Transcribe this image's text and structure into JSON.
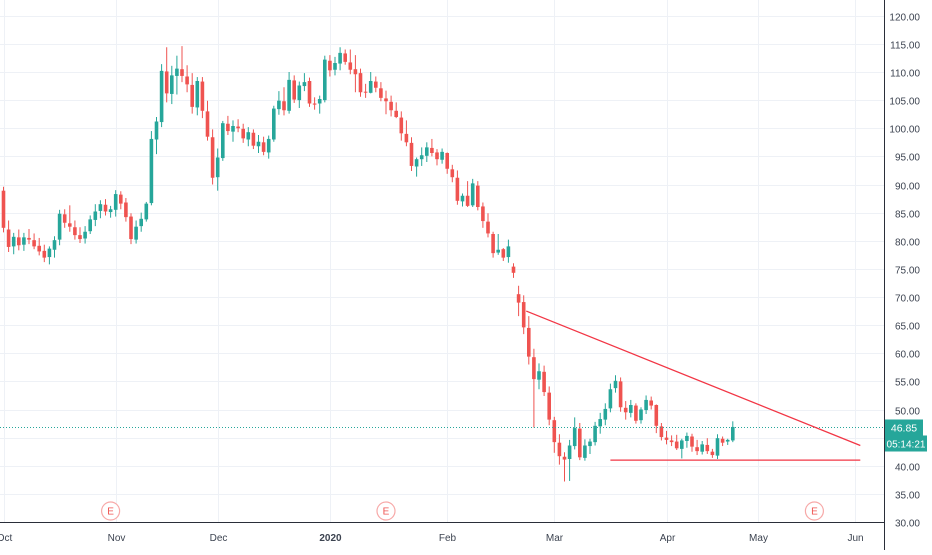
{
  "chart_data": {
    "type": "candlestick",
    "title": "",
    "ylabel": "",
    "xlabel": "",
    "ylim": [
      30,
      122.8
    ],
    "y_ticks": [
      "120.00",
      "115.00",
      "110.00",
      "105.00",
      "100.00",
      "95.00",
      "90.00",
      "85.00",
      "80.00",
      "75.00",
      "70.00",
      "65.00",
      "60.00",
      "55.00",
      "50.00",
      "45.00",
      "40.00",
      "35.00",
      "30.00"
    ],
    "x_ticks": [
      {
        "label": "Oct",
        "x": 0
      },
      {
        "label": "Nov",
        "x": 22
      },
      {
        "label": "Dec",
        "x": 42
      },
      {
        "label": "2020",
        "x": 64
      },
      {
        "label": "Feb",
        "x": 87
      },
      {
        "label": "Mar",
        "x": 108
      },
      {
        "label": "Apr",
        "x": 130
      },
      {
        "label": "May",
        "x": 148
      },
      {
        "label": "Jun",
        "x": 167
      }
    ],
    "up_color": "#26a69a",
    "down_color": "#ef5350",
    "candles": [
      [
        88.9,
        89.6,
        81.5,
        82.3
      ],
      [
        82.0,
        83.6,
        78.0,
        78.9
      ],
      [
        79.0,
        81.4,
        77.6,
        80.7
      ],
      [
        80.6,
        82.0,
        78.3,
        79.2
      ],
      [
        79.3,
        81.4,
        78.2,
        80.6
      ],
      [
        80.5,
        82.1,
        79.4,
        80.2
      ],
      [
        80.1,
        81.3,
        78.5,
        79.0
      ],
      [
        79.1,
        80.5,
        77.4,
        78.1
      ],
      [
        78.2,
        79.3,
        76.2,
        77.0
      ],
      [
        77.1,
        79.0,
        75.8,
        78.6
      ],
      [
        78.4,
        80.8,
        77.0,
        80.1
      ],
      [
        80.2,
        85.5,
        79.2,
        84.8
      ],
      [
        84.7,
        85.6,
        82.3,
        83.2
      ],
      [
        83.1,
        86.3,
        81.6,
        82.5
      ],
      [
        82.4,
        83.6,
        80.2,
        81.0
      ],
      [
        81.0,
        82.4,
        79.6,
        80.3
      ],
      [
        80.4,
        82.6,
        79.5,
        81.6
      ],
      [
        81.7,
        84.5,
        81.2,
        83.8
      ],
      [
        83.7,
        86.5,
        82.6,
        85.2
      ],
      [
        85.3,
        87.2,
        84.0,
        86.5
      ],
      [
        86.4,
        87.4,
        84.5,
        85.2
      ],
      [
        85.1,
        86.2,
        84.1,
        85.6
      ],
      [
        85.5,
        89.0,
        84.3,
        88.3
      ],
      [
        88.2,
        88.8,
        85.6,
        86.6
      ],
      [
        86.8,
        87.6,
        83.4,
        84.2
      ],
      [
        84.3,
        84.9,
        79.4,
        80.3
      ],
      [
        80.2,
        83.6,
        79.5,
        82.5
      ],
      [
        82.6,
        85.0,
        81.6,
        83.9
      ],
      [
        83.8,
        86.9,
        83.4,
        86.6
      ],
      [
        86.7,
        99.5,
        86.3,
        98.1
      ],
      [
        98.0,
        102.0,
        95.4,
        101.2
      ],
      [
        101.1,
        111.4,
        100.2,
        110.2
      ],
      [
        110.1,
        114.4,
        104.6,
        106.2
      ],
      [
        106.1,
        111.1,
        104.3,
        109.4
      ],
      [
        109.3,
        112.9,
        106.0,
        110.6
      ],
      [
        110.5,
        114.6,
        108.2,
        109.3
      ],
      [
        109.2,
        111.2,
        106.4,
        107.8
      ],
      [
        107.7,
        109.8,
        102.6,
        103.8
      ],
      [
        103.7,
        109.1,
        102.3,
        108.4
      ],
      [
        108.3,
        109.1,
        101.8,
        103.1
      ],
      [
        103.0,
        104.9,
        97.8,
        98.5
      ],
      [
        98.4,
        99.8,
        90.0,
        91.2
      ],
      [
        91.3,
        96.4,
        88.9,
        94.8
      ],
      [
        94.7,
        101.3,
        94.2,
        100.9
      ],
      [
        100.8,
        102.2,
        98.8,
        99.5
      ],
      [
        99.4,
        101.4,
        97.6,
        100.4
      ],
      [
        100.3,
        101.6,
        99.3,
        100.0
      ],
      [
        99.9,
        100.8,
        97.4,
        98.2
      ],
      [
        98.0,
        100.2,
        96.8,
        99.3
      ],
      [
        99.2,
        99.8,
        96.3,
        96.9
      ],
      [
        96.8,
        98.8,
        95.6,
        97.6
      ],
      [
        97.5,
        98.5,
        95.2,
        95.8
      ],
      [
        95.7,
        98.7,
        94.6,
        98.1
      ],
      [
        98.0,
        104.0,
        97.6,
        103.5
      ],
      [
        103.4,
        106.6,
        102.4,
        104.9
      ],
      [
        104.8,
        107.3,
        102.3,
        103.2
      ],
      [
        103.1,
        110.0,
        102.6,
        108.6
      ],
      [
        108.5,
        109.4,
        104.5,
        105.1
      ],
      [
        105.0,
        108.3,
        103.6,
        107.6
      ],
      [
        107.5,
        109.8,
        106.6,
        108.2
      ],
      [
        108.4,
        109.0,
        103.8,
        104.4
      ],
      [
        104.4,
        105.5,
        103.3,
        104.2
      ],
      [
        104.4,
        105.8,
        102.6,
        105.2
      ],
      [
        105.0,
        112.9,
        104.6,
        112.2
      ],
      [
        112.0,
        113.0,
        109.2,
        110.3
      ],
      [
        110.4,
        112.7,
        109.4,
        111.6
      ],
      [
        111.5,
        114.4,
        110.3,
        113.4
      ],
      [
        113.3,
        114.0,
        111.3,
        111.8
      ],
      [
        111.7,
        114.0,
        109.6,
        110.4
      ],
      [
        110.5,
        113.0,
        106.4,
        109.6
      ],
      [
        109.8,
        110.6,
        105.6,
        106.4
      ],
      [
        106.5,
        107.9,
        105.4,
        106.4
      ],
      [
        106.3,
        110.0,
        106.2,
        108.4
      ],
      [
        108.3,
        109.2,
        106.4,
        107.2
      ],
      [
        107.1,
        108.2,
        104.8,
        105.4
      ],
      [
        105.3,
        106.7,
        102.5,
        104.8
      ],
      [
        104.7,
        105.8,
        102.1,
        103.2
      ],
      [
        103.1,
        104.6,
        101.8,
        102.0
      ],
      [
        101.9,
        103.0,
        97.8,
        99.1
      ],
      [
        99.0,
        101.4,
        96.8,
        97.5
      ],
      [
        97.4,
        98.4,
        92.4,
        93.3
      ],
      [
        93.2,
        94.8,
        91.4,
        94.5
      ],
      [
        94.5,
        96.6,
        93.3,
        95.2
      ],
      [
        95.1,
        97.5,
        94.0,
        96.6
      ],
      [
        96.5,
        98.1,
        95.0,
        95.6
      ],
      [
        95.7,
        96.3,
        93.4,
        94.5
      ],
      [
        94.4,
        96.4,
        93.7,
        95.8
      ],
      [
        95.6,
        95.7,
        91.9,
        92.8
      ],
      [
        92.7,
        93.5,
        90.4,
        91.3
      ],
      [
        91.2,
        92.5,
        86.4,
        87.1
      ],
      [
        87.0,
        88.4,
        86.1,
        88.0
      ],
      [
        88.0,
        90.6,
        86.0,
        86.2
      ],
      [
        86.3,
        91.0,
        86.0,
        90.2
      ],
      [
        89.8,
        90.6,
        85.4,
        86.0
      ],
      [
        86.1,
        86.8,
        82.3,
        83.5
      ],
      [
        83.4,
        84.9,
        80.6,
        81.3
      ],
      [
        81.2,
        81.6,
        77.0,
        77.8
      ],
      [
        77.9,
        81.2,
        77.5,
        78.4
      ],
      [
        78.5,
        78.7,
        76.4,
        77.0
      ],
      [
        77.1,
        80.2,
        76.1,
        79.0
      ],
      [
        75.4,
        76.0,
        73.4,
        74.3
      ],
      [
        70.5,
        72.0,
        66.6,
        69.0
      ],
      [
        69.1,
        70.3,
        63.4,
        64.6
      ],
      [
        64.5,
        66.6,
        58.0,
        59.4
      ],
      [
        59.3,
        60.8,
        46.8,
        55.4
      ],
      [
        55.3,
        58.2,
        53.6,
        56.8
      ],
      [
        56.7,
        57.8,
        52.4,
        53.1
      ],
      [
        53.0,
        54.1,
        47.2,
        48.2
      ],
      [
        48.1,
        48.7,
        42.3,
        44.2
      ],
      [
        44.1,
        45.6,
        40.2,
        41.7
      ],
      [
        41.6,
        42.4,
        37.2,
        41.1
      ],
      [
        41.2,
        44.6,
        37.3,
        43.6
      ],
      [
        43.5,
        48.6,
        42.9,
        46.7
      ],
      [
        46.6,
        47.6,
        41.0,
        41.5
      ],
      [
        41.4,
        44.7,
        40.9,
        43.6
      ],
      [
        43.5,
        44.8,
        42.1,
        44.3
      ],
      [
        44.2,
        47.8,
        43.6,
        47.1
      ],
      [
        47.0,
        49.4,
        45.7,
        48.3
      ],
      [
        48.2,
        51.1,
        47.2,
        50.1
      ],
      [
        50.2,
        54.6,
        49.5,
        53.6
      ],
      [
        53.8,
        56.1,
        53.0,
        55.1
      ],
      [
        55.0,
        55.7,
        49.6,
        50.4
      ],
      [
        50.3,
        51.5,
        48.2,
        49.5
      ],
      [
        49.4,
        51.7,
        48.6,
        50.8
      ],
      [
        50.7,
        51.1,
        47.5,
        48.0
      ],
      [
        48.1,
        50.4,
        47.5,
        50.0
      ],
      [
        49.9,
        52.5,
        49.2,
        51.7
      ],
      [
        51.6,
        52.3,
        50.0,
        50.7
      ],
      [
        50.8,
        50.9,
        45.8,
        47.1
      ],
      [
        47.0,
        47.6,
        44.5,
        45.1
      ],
      [
        45.0,
        46.2,
        43.8,
        44.6
      ],
      [
        44.5,
        45.4,
        43.5,
        44.2
      ],
      [
        44.3,
        45.5,
        42.8,
        43.1
      ],
      [
        43.0,
        44.8,
        41.3,
        44.5
      ],
      [
        44.4,
        45.9,
        43.2,
        45.3
      ],
      [
        45.2,
        45.7,
        42.5,
        43.4
      ],
      [
        43.3,
        44.6,
        41.9,
        42.6
      ],
      [
        42.5,
        44.4,
        42.0,
        43.8
      ],
      [
        43.7,
        44.9,
        42.1,
        42.6
      ],
      [
        42.5,
        43.0,
        41.4,
        41.9
      ],
      [
        41.8,
        45.6,
        41.2,
        44.9
      ],
      [
        44.8,
        45.2,
        43.5,
        44.1
      ],
      [
        44.3,
        44.8,
        43.7,
        44.6
      ],
      [
        44.5,
        47.9,
        44.2,
        46.9
      ]
    ],
    "trendlines": [
      {
        "color": "#f23645",
        "from": [
          102.5,
          67.5
        ],
        "to": [
          168,
          43.6
        ]
      },
      {
        "color": "#f23645",
        "from": [
          119,
          41.0
        ],
        "to": [
          168,
          41.0
        ]
      }
    ],
    "earnings_markers": [
      {
        "label": "E",
        "x": 21
      },
      {
        "label": "E",
        "x": 75
      },
      {
        "label": "E",
        "x": 159
      }
    ],
    "last_price": {
      "value": 46.85,
      "label": "46.85",
      "countdown": "05:14:21",
      "color": "#26a69a"
    }
  }
}
